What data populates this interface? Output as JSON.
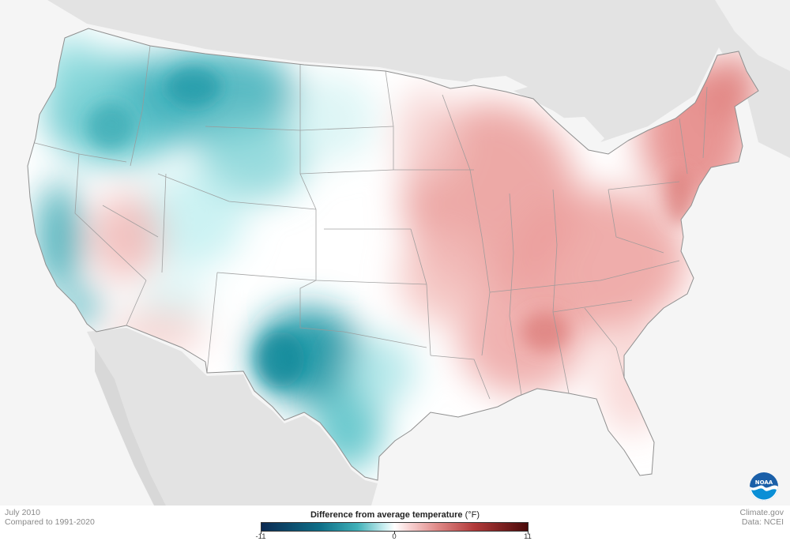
{
  "caption": {
    "date": "July 2010",
    "baseline": "Compared to 1991-2020"
  },
  "credits": {
    "source": "Climate.gov",
    "data": "Data: NCEI"
  },
  "legend": {
    "title": "Difference from average temperature",
    "unit": "(°F)",
    "min_label": "-11",
    "mid_label": "0",
    "max_label": "11",
    "colors": {
      "coldest": "#0b2a52",
      "cool": "#3fb0b8",
      "neutral": "#ffffff",
      "warm": "#e08a88",
      "warmest": "#4a0a0a"
    }
  },
  "logo": {
    "text": "NOAA"
  },
  "map": {
    "variable": "temperature anomaly",
    "regions": [
      {
        "region": "Pacific Northwest",
        "anomaly": "cooler than average"
      },
      {
        "region": "Northern Rockies",
        "anomaly": "cooler than average"
      },
      {
        "region": "Coastal California",
        "anomaly": "cooler than average"
      },
      {
        "region": "Central and South Texas",
        "anomaly": "cooler than average"
      },
      {
        "region": "Great Lakes",
        "anomaly": "warmer than average"
      },
      {
        "region": "Northeast",
        "anomaly": "warmer than average"
      },
      {
        "region": "Southeast",
        "anomaly": "warmer than average"
      }
    ]
  }
}
